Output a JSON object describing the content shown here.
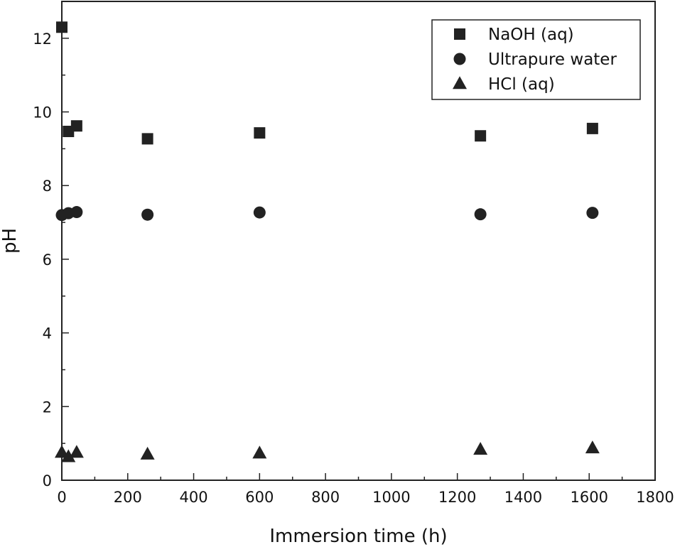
{
  "chart_data": {
    "type": "scatter",
    "title": "",
    "xlabel": "Immersion time (h)",
    "ylabel": "pH",
    "xlim": [
      0,
      1800
    ],
    "ylim": [
      0,
      13.0
    ],
    "xticks": [
      "0",
      "200",
      "400",
      "600",
      "800",
      "1000",
      "1200",
      "1400",
      "1600",
      "1800"
    ],
    "yticks": [
      "0",
      "2",
      "4",
      "6",
      "8",
      "10",
      "12"
    ],
    "grid": false,
    "legend_position": "top-right",
    "series": [
      {
        "name": "NaOH (aq)",
        "marker": "square",
        "color": "#222222",
        "points": [
          [
            0,
            12.3
          ],
          [
            20,
            9.47
          ],
          [
            45,
            9.62
          ],
          [
            260,
            9.27
          ],
          [
            600,
            9.43
          ],
          [
            1270,
            9.35
          ],
          [
            1610,
            9.55
          ]
        ]
      },
      {
        "name": "Ultrapure water",
        "marker": "circle",
        "color": "#222222",
        "points": [
          [
            0,
            7.2
          ],
          [
            20,
            7.25
          ],
          [
            45,
            7.28
          ],
          [
            260,
            7.21
          ],
          [
            600,
            7.27
          ],
          [
            1270,
            7.22
          ],
          [
            1610,
            7.26
          ]
        ]
      },
      {
        "name": "HCl (aq)",
        "marker": "triangle",
        "color": "#222222",
        "points": [
          [
            0,
            0.75
          ],
          [
            20,
            0.63
          ],
          [
            45,
            0.75
          ],
          [
            260,
            0.7
          ],
          [
            600,
            0.73
          ],
          [
            1270,
            0.83
          ],
          [
            1610,
            0.87
          ]
        ]
      }
    ]
  }
}
